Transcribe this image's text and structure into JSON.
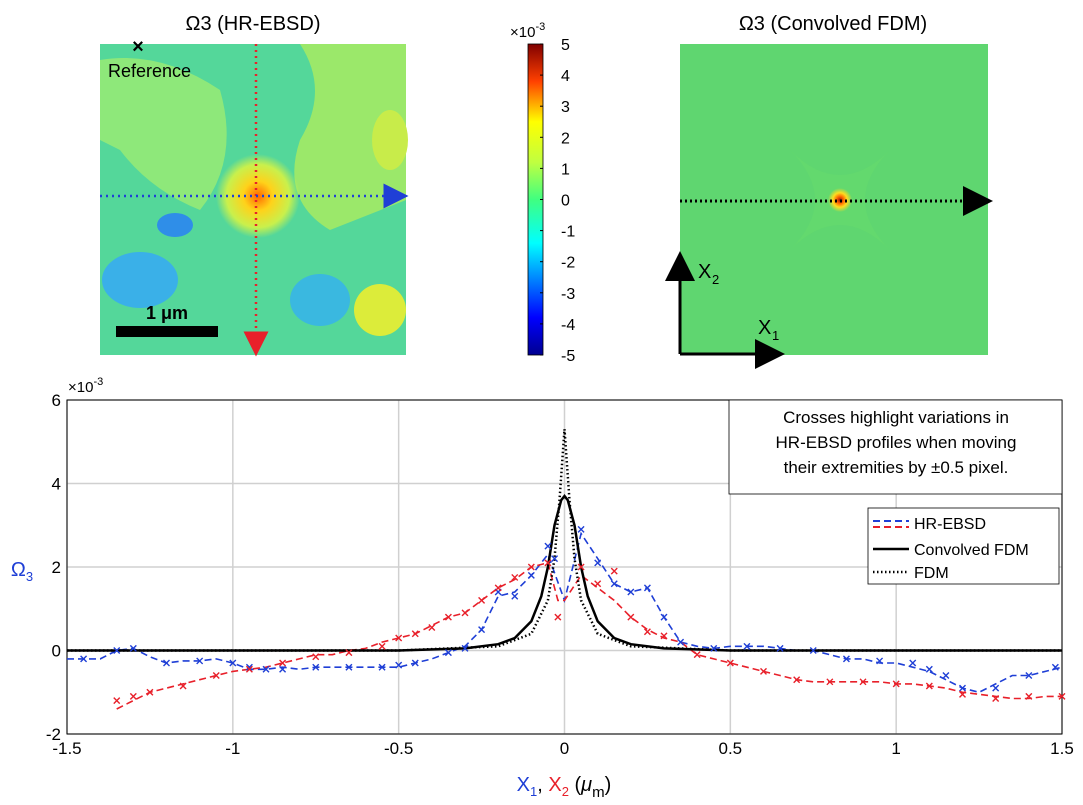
{
  "panels": {
    "left_title": "Ω3 (HR-EBSD)",
    "right_title": "Ω3 (Convolved FDM)",
    "reference_label": "Reference",
    "scale_bar_label": "1 μm",
    "axis_x1_label": "X1",
    "axis_x2_label": "X2"
  },
  "colorbar": {
    "exponent_label": "×10-3",
    "ticks": [
      "5",
      "4",
      "3",
      "2",
      "1",
      "0",
      "-1",
      "-2",
      "-3",
      "-4",
      "-5"
    ],
    "min": -5,
    "max": 5,
    "colormap": "jet"
  },
  "colors": {
    "hr_ebsd_x1": "#1f3fd6",
    "hr_ebsd_x2": "#e8202a",
    "fdm": "#000000",
    "grid": "#d0d0d0",
    "map_background": "#5fd670"
  },
  "chart_data": {
    "type": "line",
    "ylabel": "Ω3",
    "xlabel_parts": [
      "X1",
      ", ",
      "X2",
      " (μm)"
    ],
    "y_exponent_label": "×10-3",
    "xlim": [
      -1.5,
      1.5
    ],
    "ylim": [
      -2,
      6
    ],
    "xticks": [
      -1.5,
      -1,
      -0.5,
      0,
      0.5,
      1,
      1.5
    ],
    "yticks": [
      -2,
      0,
      2,
      4,
      6
    ],
    "grid": true,
    "annotation": [
      "Crosses highlight variations in",
      "HR-EBSD profiles when moving",
      "their extremities by ±0.5 pixel."
    ],
    "legend": {
      "placement": "right",
      "entries": [
        "HR-EBSD",
        "Convolved FDM",
        "FDM"
      ]
    },
    "series": [
      {
        "name": "HR-EBSD",
        "profile": "X1",
        "color": "#1f3fd6",
        "style": "dashed",
        "x": [
          -1.5,
          -1.45,
          -1.4,
          -1.35,
          -1.3,
          -1.25,
          -1.2,
          -1.15,
          -1.1,
          -1.05,
          -1.0,
          -0.95,
          -0.9,
          -0.85,
          -0.8,
          -0.75,
          -0.7,
          -0.65,
          -0.6,
          -0.55,
          -0.5,
          -0.45,
          -0.4,
          -0.35,
          -0.3,
          -0.25,
          -0.2,
          -0.15,
          -0.1,
          -0.05,
          0.0,
          0.05,
          0.1,
          0.15,
          0.2,
          0.25,
          0.3,
          0.35,
          0.4,
          0.45,
          0.5,
          0.55,
          0.6,
          0.65,
          0.7,
          0.75,
          0.8,
          0.85,
          0.9,
          0.95,
          1.0,
          1.05,
          1.1,
          1.15,
          1.2,
          1.25,
          1.3,
          1.35,
          1.4,
          1.45,
          1.5
        ],
        "values": [
          -0.2,
          -0.2,
          -0.2,
          0.0,
          0.05,
          -0.15,
          -0.3,
          -0.25,
          -0.25,
          -0.2,
          -0.3,
          -0.45,
          -0.45,
          -0.4,
          -0.45,
          -0.4,
          -0.4,
          -0.4,
          -0.4,
          -0.4,
          -0.4,
          -0.3,
          -0.2,
          -0.05,
          0.1,
          0.5,
          1.3,
          1.4,
          1.8,
          2.3,
          1.2,
          2.8,
          2.2,
          1.6,
          1.4,
          1.5,
          0.8,
          0.2,
          0.1,
          0.05,
          0.1,
          0.1,
          0.1,
          0.05,
          0.0,
          0.0,
          -0.1,
          -0.2,
          -0.2,
          -0.3,
          -0.3,
          -0.4,
          -0.5,
          -0.7,
          -0.9,
          -1.0,
          -0.8,
          -0.6,
          -0.6,
          -0.5,
          -0.4
        ]
      },
      {
        "name": "HR-EBSD",
        "profile": "X2",
        "color": "#e8202a",
        "style": "dashed",
        "x": [
          -1.35,
          -1.3,
          -1.25,
          -1.2,
          -1.15,
          -1.1,
          -1.05,
          -1.0,
          -0.95,
          -0.9,
          -0.85,
          -0.8,
          -0.75,
          -0.7,
          -0.65,
          -0.6,
          -0.55,
          -0.5,
          -0.45,
          -0.4,
          -0.35,
          -0.3,
          -0.25,
          -0.2,
          -0.15,
          -0.1,
          -0.05,
          -0.02,
          0.0,
          0.05,
          0.1,
          0.15,
          0.2,
          0.25,
          0.3,
          0.35,
          0.4,
          0.45,
          0.5,
          0.55,
          0.6,
          0.65,
          0.7,
          0.75,
          0.8,
          0.85,
          0.9,
          0.95,
          1.0,
          1.05,
          1.1,
          1.15,
          1.2,
          1.25,
          1.3,
          1.35,
          1.4,
          1.45,
          1.5
        ],
        "values": [
          -1.4,
          -1.2,
          -1.0,
          -0.9,
          -0.8,
          -0.7,
          -0.6,
          -0.5,
          -0.45,
          -0.4,
          -0.3,
          -0.2,
          -0.1,
          -0.1,
          0.0,
          0.05,
          0.2,
          0.3,
          0.4,
          0.6,
          0.8,
          0.9,
          1.2,
          1.5,
          1.7,
          2.0,
          2.1,
          1.2,
          1.2,
          1.8,
          1.5,
          1.2,
          0.8,
          0.5,
          0.3,
          0.2,
          -0.1,
          -0.2,
          -0.3,
          -0.4,
          -0.5,
          -0.6,
          -0.7,
          -0.75,
          -0.75,
          -0.75,
          -0.75,
          -0.75,
          -0.8,
          -0.8,
          -0.85,
          -0.9,
          -1.0,
          -1.05,
          -1.1,
          -1.15,
          -1.15,
          -1.1,
          -1.1
        ]
      },
      {
        "name": "Convolved FDM",
        "color": "#000000",
        "style": "solid",
        "x": [
          -1.5,
          -0.5,
          -0.3,
          -0.2,
          -0.15,
          -0.1,
          -0.07,
          -0.05,
          -0.03,
          -0.01,
          0.0,
          0.01,
          0.03,
          0.05,
          0.07,
          0.1,
          0.15,
          0.2,
          0.3,
          0.5,
          1.5
        ],
        "values": [
          0.0,
          0.0,
          0.05,
          0.15,
          0.3,
          0.7,
          1.3,
          2.0,
          3.0,
          3.6,
          3.7,
          3.6,
          3.0,
          2.0,
          1.3,
          0.7,
          0.3,
          0.15,
          0.05,
          0.0,
          0.0
        ]
      },
      {
        "name": "FDM",
        "color": "#000000",
        "style": "dotted",
        "x": [
          -1.5,
          -0.5,
          -0.2,
          -0.1,
          -0.05,
          -0.03,
          -0.015,
          0.0,
          0.015,
          0.03,
          0.05,
          0.1,
          0.2,
          0.5,
          1.5
        ],
        "values": [
          0.0,
          0.0,
          0.1,
          0.4,
          1.2,
          2.2,
          3.6,
          5.3,
          3.6,
          2.2,
          1.2,
          0.4,
          0.1,
          0.0,
          0.0
        ]
      }
    ],
    "scatter": [
      {
        "name": "crosses-x1",
        "color": "#1f3fd6",
        "x": [
          -1.45,
          -1.35,
          -1.3,
          -1.2,
          -1.1,
          -1.0,
          -0.95,
          -0.9,
          -0.85,
          -0.75,
          -0.65,
          -0.55,
          -0.5,
          -0.45,
          -0.35,
          -0.3,
          -0.25,
          -0.2,
          -0.15,
          -0.1,
          -0.05,
          -0.03,
          0.05,
          0.1,
          0.15,
          0.2,
          0.25,
          0.3,
          0.35,
          0.45,
          0.55,
          0.65,
          0.75,
          0.85,
          0.95,
          1.05,
          1.1,
          1.15,
          1.2,
          1.3,
          1.4,
          1.48
        ],
        "values": [
          -0.2,
          0.0,
          0.05,
          -0.3,
          -0.25,
          -0.3,
          -0.4,
          -0.45,
          -0.45,
          -0.4,
          -0.4,
          -0.4,
          -0.35,
          -0.3,
          -0.05,
          0.05,
          0.5,
          1.4,
          1.3,
          1.8,
          2.5,
          2.2,
          2.9,
          2.1,
          1.6,
          1.4,
          1.5,
          0.8,
          0.2,
          0.05,
          0.1,
          0.05,
          0.0,
          -0.2,
          -0.25,
          -0.3,
          -0.45,
          -0.6,
          -0.9,
          -0.9,
          -0.6,
          -0.4
        ]
      },
      {
        "name": "crosses-x2",
        "color": "#e8202a",
        "x": [
          -1.35,
          -1.3,
          -1.25,
          -1.15,
          -1.05,
          -0.95,
          -0.85,
          -0.75,
          -0.65,
          -0.55,
          -0.5,
          -0.45,
          -0.4,
          -0.35,
          -0.3,
          -0.25,
          -0.2,
          -0.15,
          -0.1,
          -0.05,
          -0.02,
          0.05,
          0.1,
          0.15,
          0.2,
          0.25,
          0.3,
          0.4,
          0.5,
          0.6,
          0.7,
          0.8,
          0.9,
          1.0,
          1.1,
          1.2,
          1.3,
          1.4,
          1.5
        ],
        "values": [
          -1.2,
          -1.1,
          -1.0,
          -0.85,
          -0.6,
          -0.45,
          -0.3,
          -0.15,
          -0.05,
          0.1,
          0.3,
          0.4,
          0.55,
          0.8,
          0.9,
          1.2,
          1.5,
          1.75,
          2.0,
          2.1,
          0.8,
          2.0,
          1.6,
          1.9,
          0.8,
          0.45,
          0.35,
          -0.1,
          -0.3,
          -0.5,
          -0.7,
          -0.75,
          -0.75,
          -0.8,
          -0.85,
          -1.05,
          -1.15,
          -1.1,
          -1.1
        ]
      }
    ]
  }
}
